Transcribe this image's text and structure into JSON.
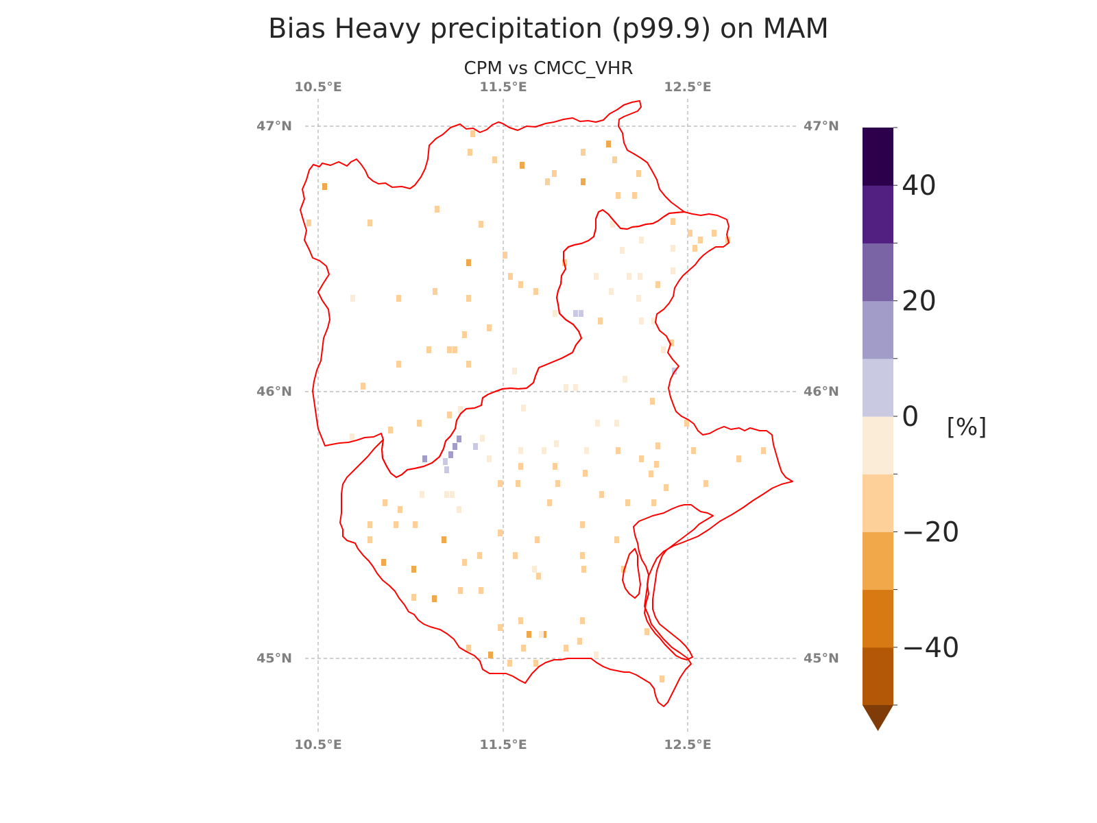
{
  "title": "Bias Heavy precipitation (p99.9) on MAM",
  "subtitle": "CPM vs CMCC_VHR",
  "lon_labels": [
    "10.5°E",
    "11.5°E",
    "12.5°E"
  ],
  "lat_labels": [
    "47°N",
    "46°N",
    "45°N"
  ],
  "grid": {
    "lons": [
      10.5,
      11.5,
      12.5
    ],
    "lats": [
      47,
      46,
      45
    ],
    "color": "#b0b0b0",
    "style": "dashed"
  },
  "region_outline_color": "#ff0000",
  "colorbar": {
    "unit": "[%]",
    "ticks": [
      "40",
      "20",
      "0",
      "−20",
      "−40"
    ],
    "bounds": [
      -50,
      -40,
      -30,
      -20,
      -10,
      0,
      10,
      20,
      30,
      40,
      50
    ],
    "colors": [
      "#b35806",
      "#d77a14",
      "#f1a84b",
      "#fdd09a",
      "#fbecd8",
      "#c9c9e2",
      "#a29dc8",
      "#7a64a6",
      "#522081",
      "#2d004b"
    ],
    "extend_low_color": "#7f3b08"
  },
  "cells_legend": {
    "very_light_orange": "#fbecd8",
    "light_orange": "#fdd09a",
    "medium_orange": "#f1a84b",
    "light_purple": "#c9c9e2",
    "medium_purple": "#a29dc8"
  }
}
